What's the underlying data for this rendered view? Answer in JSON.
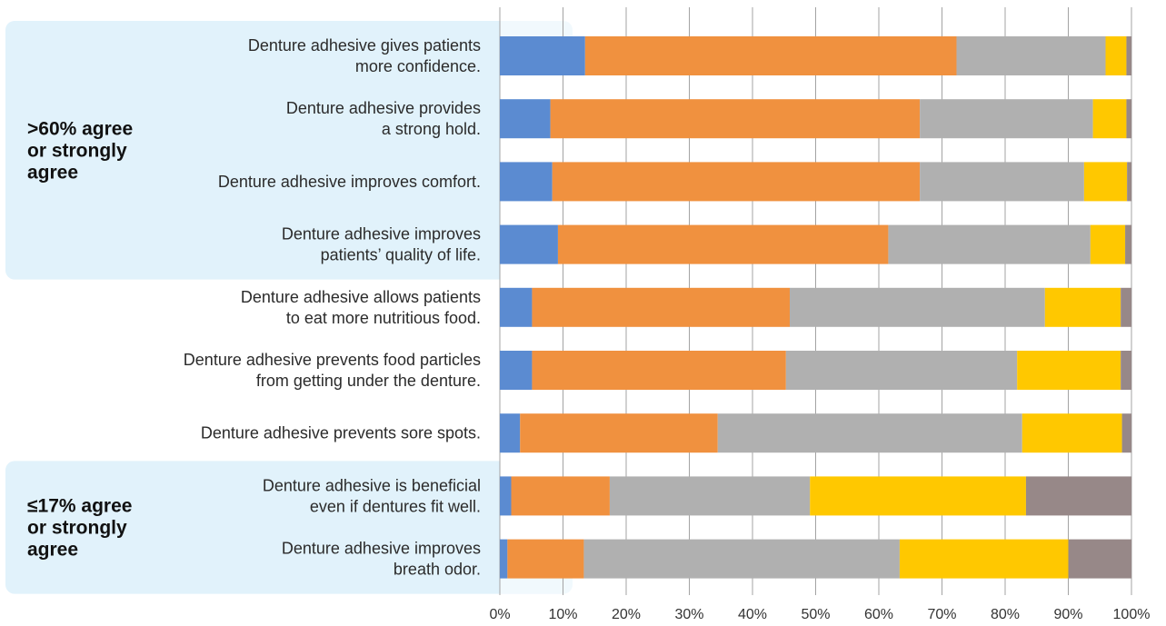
{
  "chart_data": {
    "type": "bar",
    "orientation": "horizontal",
    "stacked": true,
    "percent_scale": true,
    "xlim": [
      0,
      100
    ],
    "x_ticks": [
      "0%",
      "10%",
      "20%",
      "30%",
      "40%",
      "50%",
      "60%",
      "70%",
      "80%",
      "90%",
      "100%"
    ],
    "grid": true,
    "legend": "none",
    "categories": [
      [
        "Denture adhesive gives patients",
        "more confidence."
      ],
      [
        "Denture adhesive provides",
        "a strong hold."
      ],
      [
        "Denture adhesive improves comfort."
      ],
      [
        "Denture adhesive improves",
        "patients’ quality of life."
      ],
      [
        "Denture adhesive allows patients",
        "to eat more nutritious food."
      ],
      [
        "Denture adhesive prevents food particles",
        "from getting under the denture."
      ],
      [
        "Denture adhesive prevents sore spots."
      ],
      [
        "Denture adhesive is beneficial",
        "even if dentures fit well."
      ],
      [
        "Denture adhesive improves",
        "breath odor."
      ]
    ],
    "series": [
      {
        "color": "#5b8bd1",
        "values": [
          13.5,
          8.0,
          8.3,
          9.2,
          5.1,
          5.1,
          3.2,
          1.8,
          1.2
        ]
      },
      {
        "color": "#f0913f",
        "values": [
          58.8,
          58.5,
          58.2,
          52.3,
          40.8,
          40.2,
          31.3,
          15.6,
          12.1
        ]
      },
      {
        "color": "#b0b0b0",
        "values": [
          23.6,
          27.4,
          26.0,
          32.0,
          40.4,
          36.6,
          48.2,
          31.7,
          50.0
        ]
      },
      {
        "color": "#ffc800",
        "values": [
          3.3,
          5.3,
          6.8,
          5.5,
          12.0,
          16.4,
          15.8,
          34.2,
          26.7
        ]
      },
      {
        "color": "#978888",
        "values": [
          0.8,
          0.8,
          0.7,
          1.0,
          1.7,
          1.7,
          1.5,
          16.7,
          10.0
        ]
      }
    ],
    "groups": [
      {
        "label_lines": [
          ">60% agree",
          "or strongly",
          "agree"
        ],
        "rows": [
          0,
          3
        ],
        "color": "#e1f2fb"
      },
      {
        "label_lines": [
          "≤17% agree",
          "or strongly",
          "agree"
        ],
        "rows": [
          7,
          8
        ],
        "color": "#e1f2fb"
      }
    ],
    "colors": {
      "grid": "#a3a3a3",
      "stripe": "#ffffff"
    }
  }
}
